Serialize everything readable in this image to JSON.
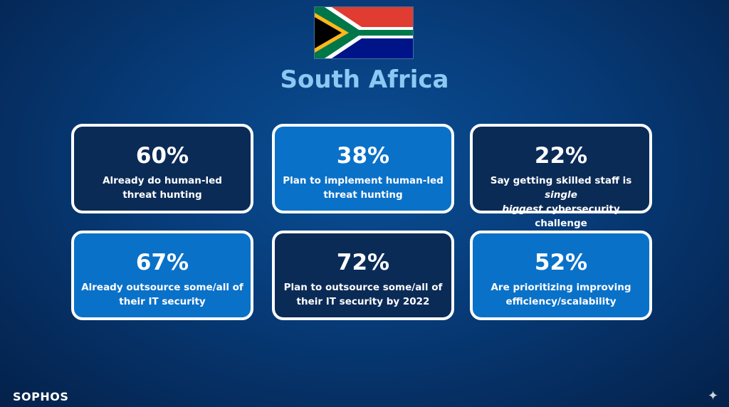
{
  "header": {
    "title": "South Africa"
  },
  "flag": {
    "name": "south-africa-flag",
    "colors": {
      "red": "#e03c31",
      "blue": "#001489",
      "green": "#007749",
      "yellow": "#ffb81c",
      "black": "#000000",
      "white": "#ffffff"
    }
  },
  "stats": [
    {
      "value": "60%",
      "desc_line1": "Already do human-led",
      "desc_line2": "threat hunting",
      "style": "dark"
    },
    {
      "value": "38%",
      "desc_line1": "Plan to implement human-led",
      "desc_line2": "threat hunting",
      "style": "light"
    },
    {
      "value": "22%",
      "desc_line1_pre": "Say getting skilled staff is ",
      "desc_line1_em": "single",
      "desc_line2_em": "biggest",
      "desc_line2_post": " cybersecurity challenge",
      "style": "dark"
    },
    {
      "value": "67%",
      "desc_line1": "Already outsource some/all of",
      "desc_line2": "their IT security",
      "style": "light"
    },
    {
      "value": "72%",
      "desc_line1": "Plan to outsource some/all of",
      "desc_line2": "their IT security by 2022",
      "style": "dark"
    },
    {
      "value": "52%",
      "desc_line1": "Are prioritizing improving",
      "desc_line2": "efficiency/scalability",
      "style": "light"
    }
  ],
  "footer": {
    "logo": "SOPHOS"
  },
  "colors": {
    "background": "#073b78",
    "title": "#8cc8f2",
    "card_dark": "#0b2b57",
    "card_light": "#0a71c9"
  }
}
